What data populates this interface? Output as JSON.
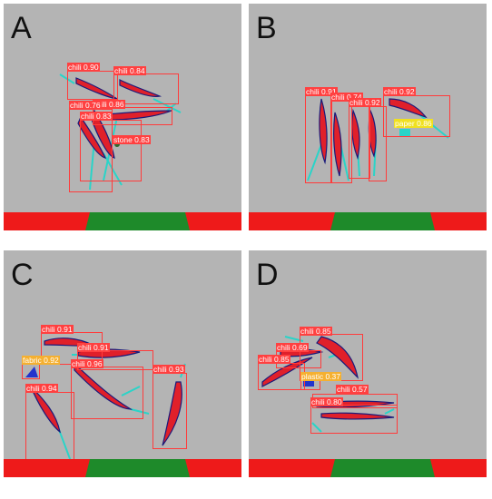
{
  "panels": [
    {
      "label": "A",
      "detections": [
        {
          "label": "chili 0.90",
          "color": "red"
        },
        {
          "label": "chili 0.84",
          "color": "red"
        },
        {
          "label": "chili 0.86",
          "color": "red"
        },
        {
          "label": "chili 0.76",
          "color": "red"
        },
        {
          "label": "chili 0.83",
          "color": "red"
        },
        {
          "label": "stone 0.83",
          "color": "red"
        }
      ]
    },
    {
      "label": "B",
      "detections": [
        {
          "label": "chili 0.91",
          "color": "red"
        },
        {
          "label": "chili 0.74",
          "color": "red"
        },
        {
          "label": "chili 0.92",
          "color": "red"
        },
        {
          "label": "chili 0.92",
          "color": "red"
        },
        {
          "label": "paper 0.86",
          "color": "yellow"
        }
      ]
    },
    {
      "label": "C",
      "detections": [
        {
          "label": "chili 0.91",
          "color": "red"
        },
        {
          "label": "chili 0.91",
          "color": "red"
        },
        {
          "label": "fabric 0.92",
          "color": "orange"
        },
        {
          "label": "chili 0.96",
          "color": "red"
        },
        {
          "label": "chili 0.93",
          "color": "red"
        },
        {
          "label": "chili 0.94",
          "color": "red"
        }
      ]
    },
    {
      "label": "D",
      "detections": [
        {
          "label": "chili 0.85",
          "color": "red"
        },
        {
          "label": "chili 0.69",
          "color": "red"
        },
        {
          "label": "chili 0.85",
          "color": "red"
        },
        {
          "label": "plastic 0.37",
          "color": "orange"
        },
        {
          "label": "chili 0.57",
          "color": "red"
        },
        {
          "label": "chili 0.80",
          "color": "red"
        }
      ]
    }
  ]
}
